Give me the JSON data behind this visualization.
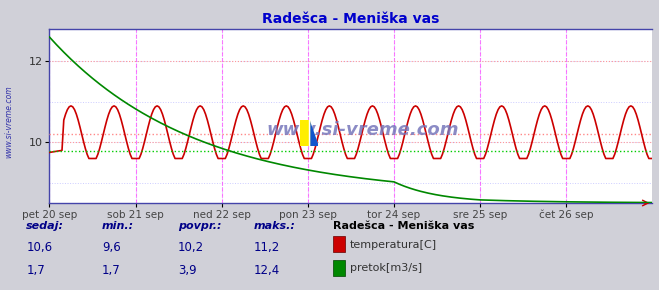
{
  "title": "Radešca - Meniška vas",
  "title_color": "#0000cc",
  "bg_color": "#d0d0d8",
  "plot_bg_color": "#ffffff",
  "grid_color_h": "#ff9999",
  "grid_color_v": "#ff44ff",
  "grid_color_light": "#ccccff",
  "watermark": "www.si-vreme.com",
  "x_tick_positions": [
    0,
    48,
    96,
    144,
    192,
    240,
    288
  ],
  "x_tick_labels": [
    "pet 20 sep",
    "sob 21 sep",
    "ned 22 sep",
    "pon 23 sep",
    "tor 24 sep",
    "sre 25 sep",
    "čet 26 sep"
  ],
  "y_ticks": [
    10,
    12
  ],
  "temp_color": "#cc0000",
  "flow_color": "#008800",
  "avg_temp_color": "#ff8888",
  "avg_flow_color": "#00cc00",
  "legend_title": "Radešca - Meniška vas",
  "label_color": "#000088",
  "stats_headers": [
    "sedaj:",
    "min.:",
    "povpr.:",
    "maks.:"
  ],
  "stats_temp": [
    "10,6",
    "9,6",
    "10,2",
    "11,2"
  ],
  "stats_flow": [
    "1,7",
    "1,7",
    "3,9",
    "12,4"
  ],
  "temp_avg": 10.2,
  "flow_avg": 3.9,
  "sidebar_text": "www.si-vreme.com",
  "sidebar_color": "#3333aa"
}
